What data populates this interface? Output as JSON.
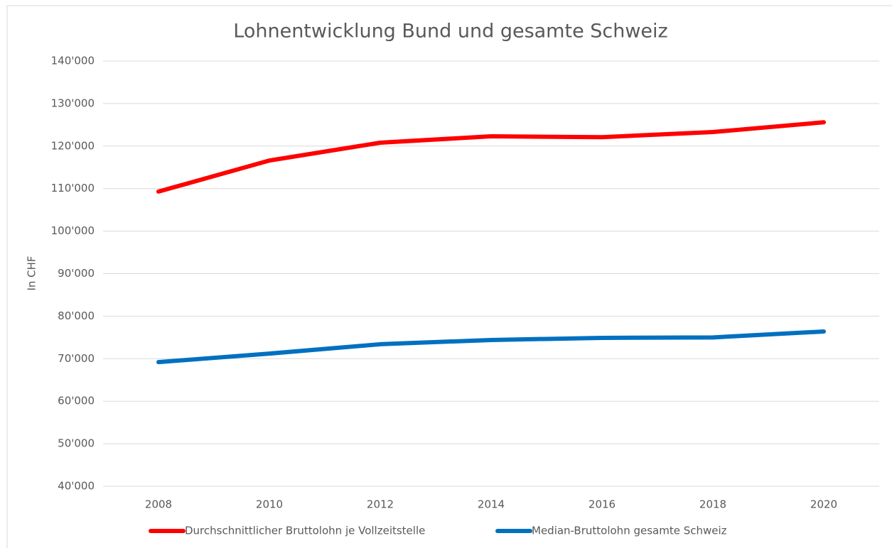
{
  "chart_data": {
    "type": "line",
    "title": "Lohnentwicklung Bund und gesamte Schweiz",
    "y_label": "In CHF",
    "categories": [
      "2008",
      "2010",
      "2012",
      "2014",
      "2016",
      "2018",
      "2020"
    ],
    "series": [
      {
        "name": "Durchschnittlicher Bruttolohn je Vollzeitstelle",
        "color": "#ff0000",
        "values": [
          109300,
          116600,
          120800,
          122300,
          122100,
          123300,
          125600
        ]
      },
      {
        "name": "Median-Bruttolohn gesamte Schweiz",
        "color": "#0070c0",
        "values": [
          69200,
          71200,
          73400,
          74400,
          74900,
          75000,
          76400
        ]
      }
    ],
    "ylim": [
      40000,
      140000
    ],
    "yticks": [
      {
        "value": 40000,
        "label": "40'000"
      },
      {
        "value": 50000,
        "label": "50'000"
      },
      {
        "value": 60000,
        "label": "60'000"
      },
      {
        "value": 70000,
        "label": "70'000"
      },
      {
        "value": 80000,
        "label": "80'000"
      },
      {
        "value": 90000,
        "label": "90'000"
      },
      {
        "value": 100000,
        "label": "100'000"
      },
      {
        "value": 110000,
        "label": "110'000"
      },
      {
        "value": 120000,
        "label": "120'000"
      },
      {
        "value": 130000,
        "label": "130'000"
      },
      {
        "value": 140000,
        "label": "140'000"
      }
    ],
    "grid": true,
    "legend": "bottom"
  }
}
